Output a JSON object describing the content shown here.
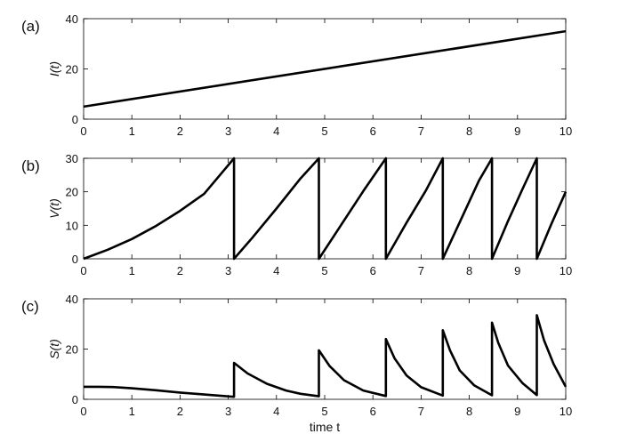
{
  "chart_data": [
    {
      "type": "line",
      "panel_label": "(a)",
      "ylabel": "I(t)",
      "xlim": [
        0,
        10
      ],
      "ylim": [
        0,
        40
      ],
      "xticks": [
        0,
        1,
        2,
        3,
        4,
        5,
        6,
        7,
        8,
        9,
        10
      ],
      "yticks": [
        0,
        20,
        40
      ],
      "series": [
        {
          "x": [
            0,
            10
          ],
          "y": [
            5,
            35
          ]
        }
      ]
    },
    {
      "type": "line",
      "panel_label": "(b)",
      "ylabel": "V(t)",
      "xlim": [
        0,
        10
      ],
      "ylim": [
        0,
        30
      ],
      "xticks": [
        0,
        1,
        2,
        3,
        4,
        5,
        6,
        7,
        8,
        9,
        10
      ],
      "yticks": [
        0,
        10,
        20,
        30
      ],
      "series": [
        {
          "x": [
            0,
            0.5,
            1.0,
            1.5,
            2.0,
            2.5,
            3.12,
            3.12,
            3.5,
            4.0,
            4.5,
            4.88,
            4.88,
            5.3,
            5.8,
            6.27,
            6.27,
            6.7,
            7.1,
            7.45,
            7.45,
            7.8,
            8.2,
            8.47,
            8.47,
            8.8,
            9.1,
            9.4,
            9.4,
            9.7,
            10.0
          ],
          "y": [
            0,
            2.7,
            5.9,
            9.8,
            14.3,
            19.4,
            30,
            0,
            6.3,
            15.0,
            24.0,
            30,
            0,
            9.2,
            20.2,
            30,
            0,
            10.8,
            20.4,
            30,
            0,
            10.9,
            23.3,
            30,
            0,
            11.2,
            20.7,
            30,
            0,
            10.3,
            20
          ]
        }
      ]
    },
    {
      "type": "line",
      "panel_label": "(c)",
      "ylabel": "S(t)",
      "xlabel": "time  t",
      "xlim": [
        0,
        10
      ],
      "ylim": [
        0,
        40
      ],
      "xticks": [
        0,
        1,
        2,
        3,
        4,
        5,
        6,
        7,
        8,
        9,
        10
      ],
      "yticks": [
        0,
        20,
        40
      ],
      "series": [
        {
          "x": [
            0,
            0.3,
            0.6,
            1.0,
            1.5,
            2.0,
            2.5,
            3.12,
            3.12,
            3.4,
            3.8,
            4.2,
            4.5,
            4.88,
            4.88,
            5.1,
            5.4,
            5.8,
            6.27,
            6.27,
            6.45,
            6.7,
            7.0,
            7.45,
            7.45,
            7.6,
            7.8,
            8.1,
            8.47,
            8.47,
            8.6,
            8.8,
            9.1,
            9.4,
            9.4,
            9.55,
            9.75,
            10.0
          ],
          "y": [
            5,
            5,
            4.9,
            4.4,
            3.6,
            2.7,
            1.9,
            1,
            14.5,
            10.3,
            6.2,
            3.5,
            2.2,
            1.2,
            19.5,
            13.3,
            7.6,
            3.5,
            1.3,
            24,
            16.3,
            9.5,
            4.8,
            1.5,
            27.5,
            19.5,
            11.5,
            5.6,
            1.6,
            30.5,
            22.5,
            13.5,
            6.5,
            1.7,
            33.5,
            23.5,
            14.0,
            5
          ]
        }
      ]
    }
  ]
}
